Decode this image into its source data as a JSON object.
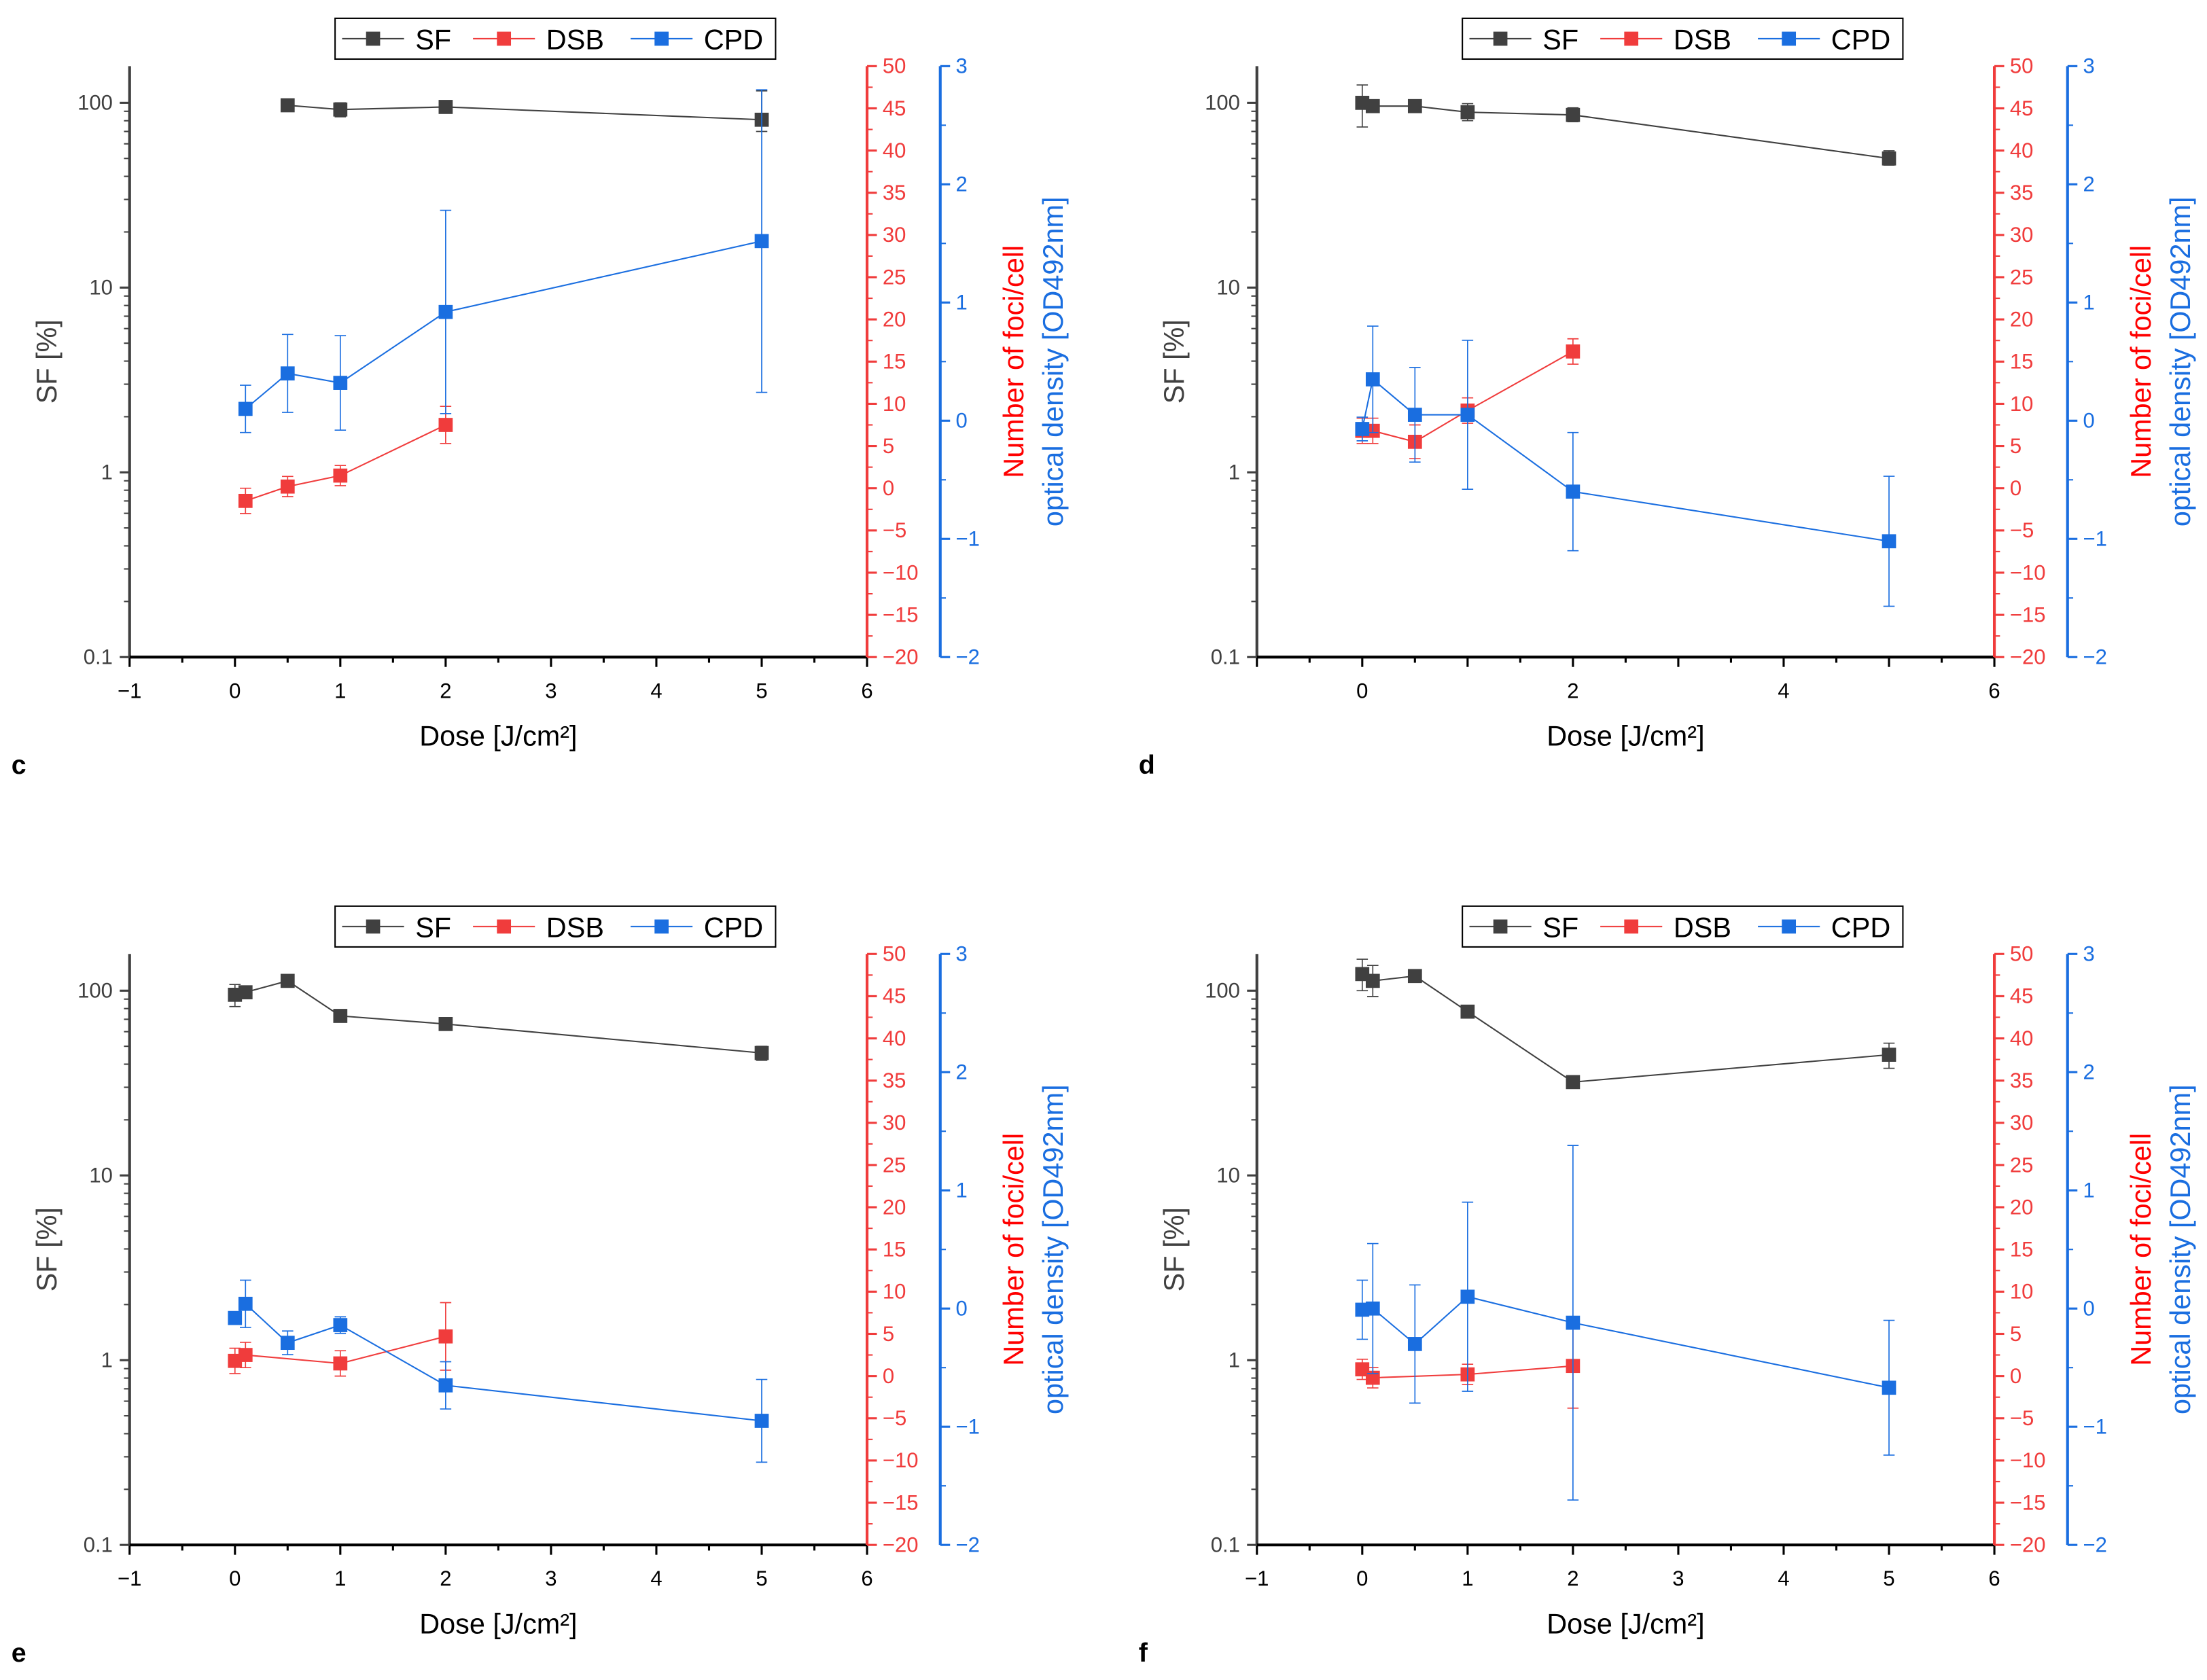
{
  "chart_data": {
    "type": "line",
    "shared": {
      "xlabel": "Dose [J/cm²]",
      "ylabel_left": "SF [%]",
      "ylabel_right1": "Number of foci/cell",
      "ylabel_right2": "optical density [OD492nm]",
      "xlim": [
        -1,
        6
      ],
      "ylim_left": [
        0.1,
        158
      ],
      "yscale_left": "log",
      "yticks_left": [
        "0.1",
        "1",
        "10",
        "100"
      ],
      "ylim_right1": [
        -20,
        50
      ],
      "yticks_right1": [
        -20,
        -15,
        -10,
        -5,
        0,
        5,
        10,
        15,
        20,
        25,
        30,
        35,
        40,
        45,
        50
      ],
      "ylim_right2": [
        -2,
        3
      ],
      "yticks_right2": [
        -2,
        -1,
        0,
        1,
        2,
        3
      ],
      "legend": [
        "SF",
        "DSB",
        "CPD"
      ],
      "legend_placement": "top-center",
      "colors": {
        "SF": "#404040",
        "DSB": "#f03c3c",
        "CPD": "#1a6ee0",
        "red_axis": "#f03c3c",
        "red_label": "#ff0000",
        "blue_axis": "#1a6ee0"
      },
      "grid": false
    },
    "panels": [
      {
        "label": "c",
        "xticks": [
          -1,
          0,
          1,
          2,
          3,
          4,
          5,
          6
        ],
        "series": [
          {
            "name": "SF",
            "axis": "left",
            "x": [
              0.5,
              1,
              2,
              5
            ],
            "y": [
              97,
              92,
              95,
              81
            ],
            "err_lo": [
              90,
              84,
              92,
              70
            ],
            "err_hi": [
              103,
              100,
              98,
              116
            ]
          },
          {
            "name": "DSB",
            "axis": "right1",
            "x": [
              0.1,
              0.5,
              1,
              2
            ],
            "y": [
              -1.5,
              0.2,
              1.5,
              7.5
            ],
            "err": [
              1.5,
              1.2,
              1.2,
              2.2
            ]
          },
          {
            "name": "CPD",
            "axis": "right2",
            "x": [
              0.1,
              0.5,
              1,
              2,
              5
            ],
            "y": [
              0.1,
              0.4,
              0.32,
              0.92,
              1.52
            ],
            "err": [
              0.2,
              0.33,
              0.4,
              0.86,
              1.28
            ]
          }
        ]
      },
      {
        "label": "d",
        "xticks": [
          0,
          2,
          4,
          6
        ],
        "series": [
          {
            "name": "SF",
            "axis": "left",
            "x": [
              0,
              0.1,
              0.5,
              1,
              2,
              5
            ],
            "y": [
              100,
              96,
              96,
              89,
              86,
              50
            ],
            "err_lo": [
              74,
              93,
              92,
              80,
              79,
              46
            ],
            "err_hi": [
              125,
              99,
              100,
              99,
              94,
              55
            ]
          },
          {
            "name": "DSB",
            "axis": "right1",
            "x": [
              0,
              0.1,
              0.5,
              1,
              2
            ],
            "y": [
              6.8,
              6.8,
              5.5,
              9.2,
              16.2
            ],
            "err": [
              1.5,
              1.5,
              2,
              1.5,
              1.5
            ]
          },
          {
            "name": "CPD",
            "axis": "right2",
            "x": [
              0,
              0.1,
              0.5,
              1,
              2,
              5
            ],
            "y": [
              -0.07,
              0.35,
              0.05,
              0.05,
              -0.6,
              -1.02
            ],
            "err": [
              0.1,
              0.45,
              0.4,
              0.63,
              0.5,
              0.55
            ]
          }
        ]
      },
      {
        "label": "e",
        "xticks": [
          -1,
          0,
          1,
          2,
          3,
          4,
          5,
          6
        ],
        "series": [
          {
            "name": "SF",
            "axis": "left",
            "x": [
              0,
              0.1,
              0.5,
              1,
              2,
              5
            ],
            "y": [
              95,
              98,
              113,
              73,
              66,
              46
            ],
            "err_lo": [
              82,
              95,
              110,
              71,
              64,
              42
            ],
            "err_hi": [
              108,
              101,
              116,
              75,
              68,
              50
            ]
          },
          {
            "name": "DSB",
            "axis": "right1",
            "x": [
              0,
              0.1,
              1,
              2
            ],
            "y": [
              1.8,
              2.5,
              1.5,
              4.7
            ],
            "err": [
              1.5,
              1.5,
              1.5,
              4
            ]
          },
          {
            "name": "CPD",
            "axis": "right2",
            "x": [
              0,
              0.1,
              0.5,
              1,
              2,
              5
            ],
            "y": [
              -0.08,
              0.04,
              -0.29,
              -0.14,
              -0.65,
              -0.95
            ],
            "err": [
              0.05,
              0.2,
              0.1,
              0.07,
              0.2,
              0.35
            ]
          }
        ]
      },
      {
        "label": "f",
        "xticks": [
          -1,
          0,
          1,
          2,
          3,
          4,
          5,
          6
        ],
        "series": [
          {
            "name": "SF",
            "axis": "left",
            "x": [
              0,
              0.1,
              0.5,
              1,
              2,
              5
            ],
            "y": [
              123,
              113,
              120,
              77,
              32,
              45
            ],
            "err_lo": [
              100,
              93,
              112,
              75,
              31,
              38
            ],
            "err_hi": [
              148,
              137,
              128,
              79,
              33,
              52
            ]
          },
          {
            "name": "DSB",
            "axis": "right1",
            "x": [
              0,
              0.1,
              1,
              2
            ],
            "y": [
              0.8,
              -0.2,
              0.2,
              1.2
            ],
            "err": [
              1.2,
              1.2,
              1.2,
              5
            ]
          },
          {
            "name": "CPD",
            "axis": "right2",
            "x": [
              0,
              0.1,
              0.5,
              1,
              2,
              5
            ],
            "y": [
              -0.01,
              0,
              -0.3,
              0.1,
              -0.12,
              -0.67
            ],
            "err": [
              0.25,
              0.55,
              0.5,
              0.8,
              1.5,
              0.57
            ]
          }
        ]
      }
    ]
  }
}
